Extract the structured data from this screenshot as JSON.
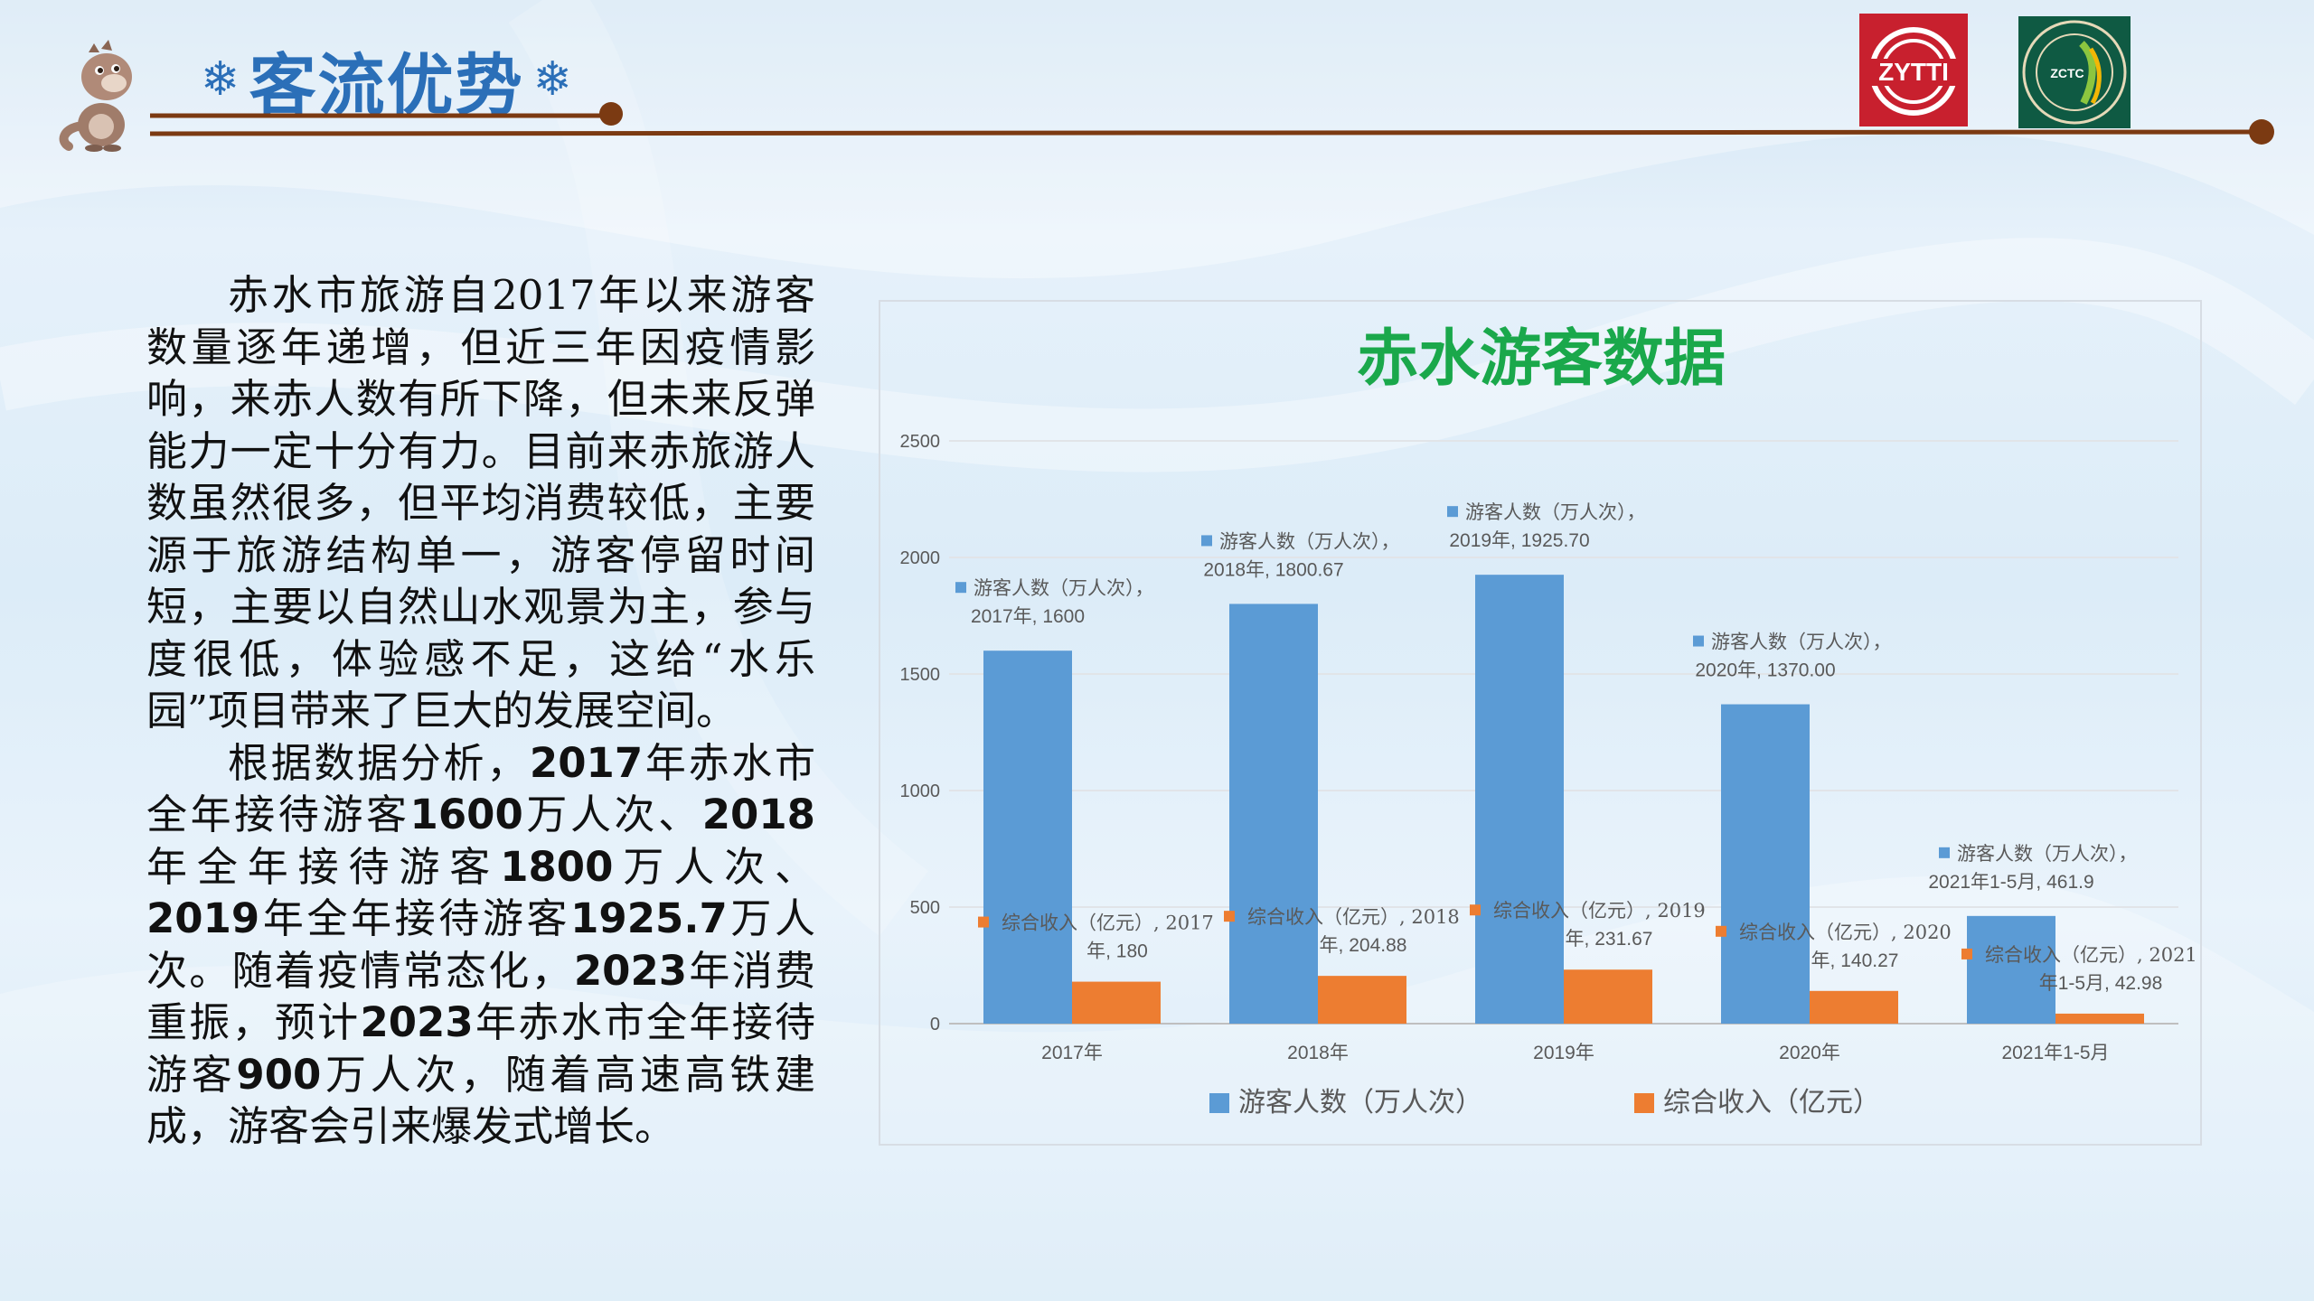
{
  "header": {
    "title": "客流优势",
    "logos": [
      {
        "name": "ZYTTI",
        "text": "ZYTTI",
        "color": "#c8202e"
      },
      {
        "name": "ZCTC",
        "text": "ZCTC",
        "color": "#0f5a43"
      }
    ]
  },
  "body_text": {
    "paragraph1": "赤水市旅游自2017年以来游客数量逐年递增，但近三年因疫情影响，来赤人数有所下降，但未来反弹能力一定十分有力。目前来赤旅游人数虽然很多，但平均消费较低，主要源于旅游结构单一，游客停留时间短，主要以自然山水观景为主，参与度很低，体验感不足，这给“水乐园”项目带来了巨大的发展空间。",
    "p2": {
      "a": "根据数据分析，",
      "b": "2017",
      "c": "年赤水市全年接待游客",
      "d": "1600",
      "e": "万人次、",
      "f": "2018",
      "g": "年全年接待游客",
      "h": "1800",
      "i": "万人次、",
      "j": "2019",
      "k": "年全年接待游客",
      "l": "1925.7",
      "m": "万人次。随着疫情常态化，",
      "n": "2023",
      "o": "年消费重振，预计",
      "p": "2023",
      "q": "年赤水市全年接待游客",
      "r": "900",
      "s": "万人次，随着高速高铁建成，游客会引来爆发式增长。"
    }
  },
  "chart_data": {
    "type": "bar",
    "title": "赤水游客数据",
    "categories": [
      "2017年",
      "2018年",
      "2019年",
      "2020年",
      "2021年1-5月"
    ],
    "series": [
      {
        "name": "游客人数（万人次）",
        "values": [
          1600,
          1800.67,
          1925.7,
          1370.0,
          461.9
        ],
        "labels": [
          "2017年, 1600",
          "2018年, 1800.67",
          "2019年, 1925.70",
          "2020年, 1370.00",
          "2021年1-5月, 461.9"
        ],
        "color": "#5b9bd5"
      },
      {
        "name": "综合收入（亿元）",
        "values": [
          180,
          204.88,
          231.67,
          140.27,
          42.98
        ],
        "labels": [
          "年, 180",
          "年, 204.88",
          "年, 231.67",
          "年, 140.27",
          "年1-5月, 42.98"
        ],
        "label_prefix": [
          "2017",
          "2018",
          "2019",
          "2020",
          "2021"
        ],
        "color": "#ed7d31"
      }
    ],
    "ylim": [
      0,
      2500
    ],
    "yticks": [
      0,
      500,
      1000,
      1500,
      2000,
      2500
    ],
    "grid": true,
    "legend": "bottom",
    "title_color": "#1aa84b"
  }
}
